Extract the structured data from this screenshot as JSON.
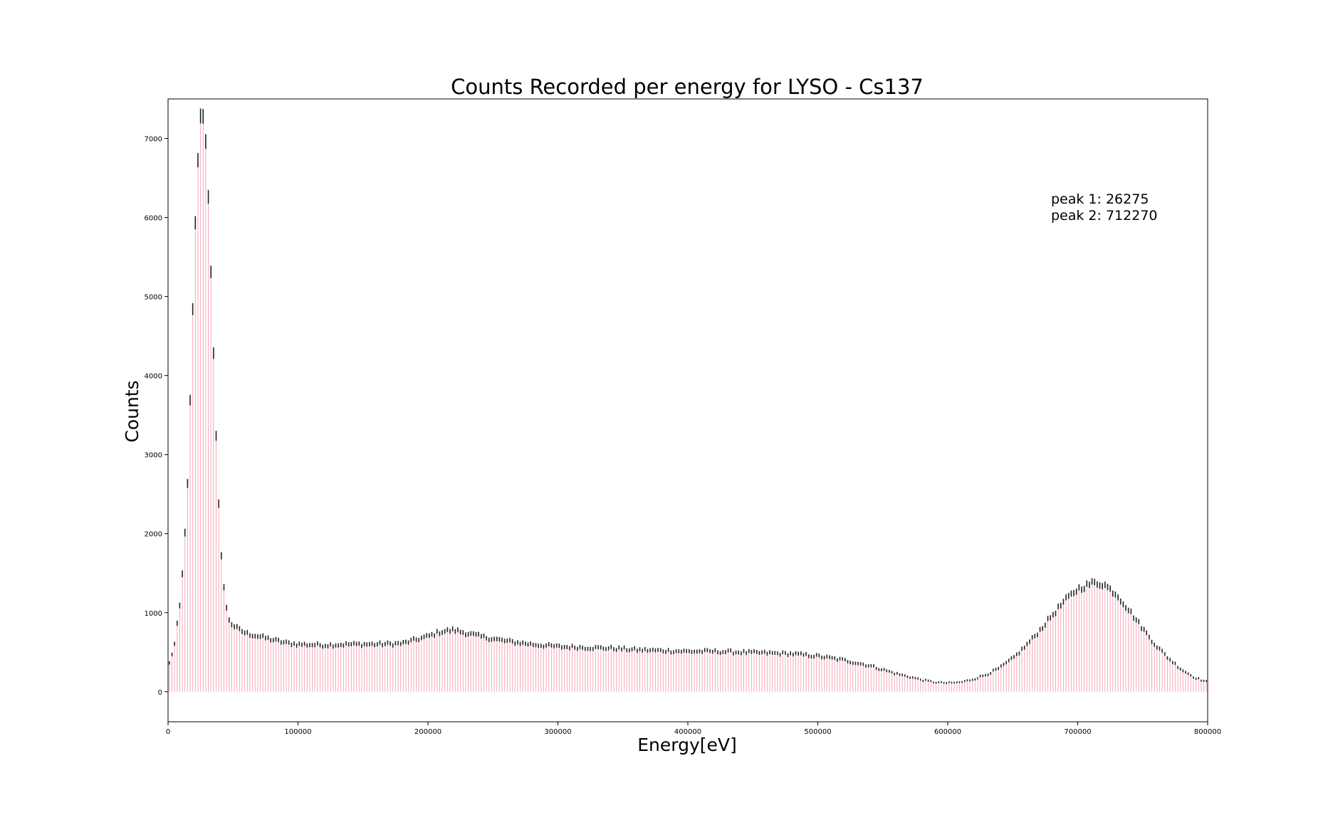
{
  "chart_data": {
    "type": "bar",
    "title": "Counts Recorded per energy for LYSO - Cs137",
    "xlabel": "Energy[eV]",
    "ylabel": "Counts",
    "xlim": [
      0,
      800000
    ],
    "ylim": [
      -380,
      7500
    ],
    "xticks": [
      0,
      100000,
      200000,
      300000,
      400000,
      500000,
      600000,
      700000,
      800000
    ],
    "yticks": [
      0,
      1000,
      2000,
      3000,
      4000,
      5000,
      6000,
      7000
    ],
    "grid": false,
    "bar_color": "#f7a8b8",
    "error_color": "#222222",
    "annotations": [
      "peak 1: 26275",
      "peak 2: 712270"
    ],
    "profile": {
      "x": [
        0,
        5000,
        10000,
        15000,
        18000,
        20000,
        22000,
        24000,
        26275,
        28000,
        30000,
        32000,
        34000,
        36000,
        38000,
        40000,
        42000,
        44000,
        46000,
        48000,
        50000,
        55000,
        60000,
        70000,
        80000,
        90000,
        100000,
        120000,
        140000,
        160000,
        180000,
        200000,
        210000,
        220000,
        230000,
        240000,
        260000,
        280000,
        300000,
        320000,
        340000,
        360000,
        380000,
        400000,
        420000,
        440000,
        460000,
        480000,
        500000,
        520000,
        540000,
        560000,
        580000,
        590000,
        600000,
        610000,
        620000,
        630000,
        640000,
        650000,
        660000,
        670000,
        680000,
        690000,
        700000,
        712270,
        720000,
        730000,
        740000,
        750000,
        760000,
        770000,
        780000,
        790000,
        800000
      ],
      "y": [
        300,
        600,
        1200,
        2600,
        4200,
        5400,
        6400,
        7100,
        7420,
        7200,
        6700,
        5900,
        4800,
        3700,
        2700,
        2000,
        1500,
        1150,
        950,
        880,
        840,
        780,
        740,
        700,
        660,
        620,
        600,
        590,
        600,
        600,
        610,
        700,
        760,
        780,
        740,
        700,
        640,
        600,
        570,
        560,
        550,
        530,
        520,
        510,
        510,
        500,
        490,
        480,
        450,
        400,
        330,
        230,
        150,
        120,
        110,
        120,
        160,
        220,
        300,
        420,
        580,
        760,
        960,
        1150,
        1300,
        1380,
        1360,
        1230,
        1020,
        800,
        590,
        420,
        280,
        180,
        120
      ]
    }
  }
}
